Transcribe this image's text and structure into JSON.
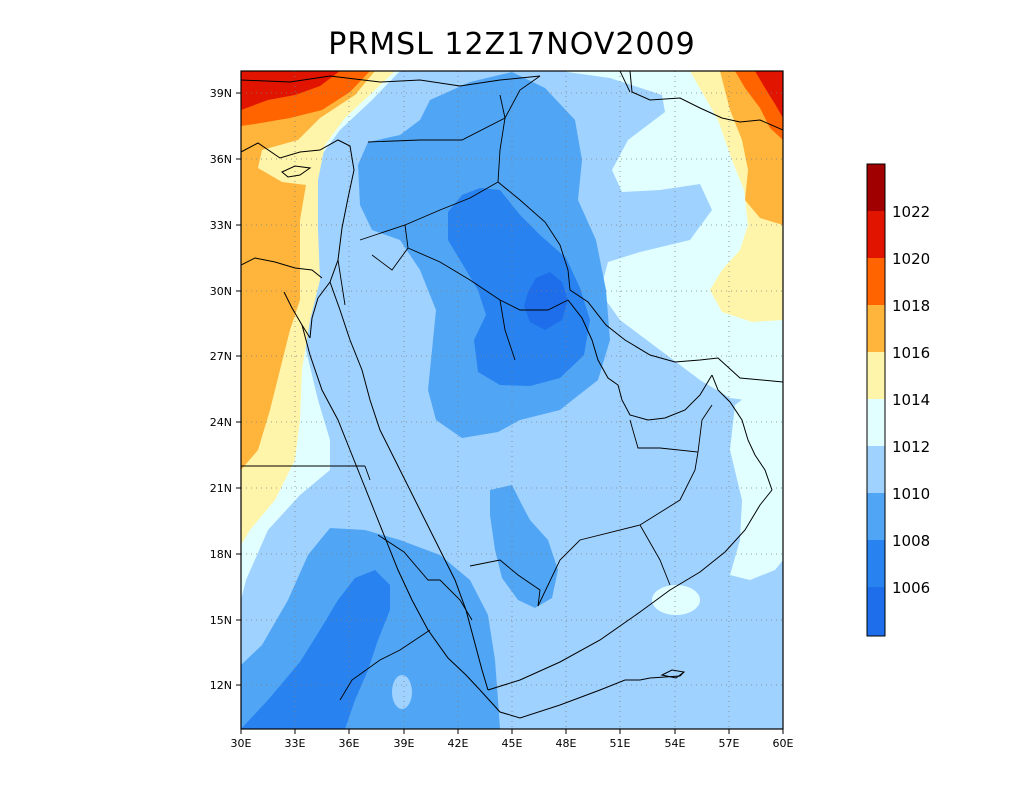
{
  "title": "PRMSL 12Z17NOV2009",
  "map": {
    "x_ticks": [
      "30E",
      "33E",
      "36E",
      "39E",
      "42E",
      "45E",
      "48E",
      "51E",
      "54E",
      "57E",
      "60E"
    ],
    "y_ticks": [
      "39N",
      "36N",
      "33N",
      "30N",
      "27N",
      "24N",
      "21N",
      "18N",
      "15N",
      "12N"
    ],
    "lon_range": [
      30,
      60
    ],
    "lat_range": [
      10,
      40
    ],
    "grid": "dotted",
    "coast_color": "#000000"
  },
  "colorbar": {
    "labels": [
      "1022",
      "1020",
      "1018",
      "1016",
      "1014",
      "1012",
      "1010",
      "1008",
      "1006"
    ],
    "colors": [
      "#a00000",
      "#e11400",
      "#ff6400",
      "#ffb43c",
      "#fff5aa",
      "#e1ffff",
      "#a0d2ff",
      "#50a5f5",
      "#2882f0",
      "#1e6eeb"
    ]
  },
  "fill_levels": {
    "lt1006": "#1e6eeb",
    "l1006_1008": "#2882f0",
    "l1008_1010": "#50a5f5",
    "l1010_1012": "#a0d2ff",
    "l1012_1014": "#e1ffff",
    "l1014_1016": "#fff5aa",
    "l1016_1018": "#ffb43c",
    "l1018_1020": "#ff6400",
    "l1020_1022": "#e11400"
  }
}
